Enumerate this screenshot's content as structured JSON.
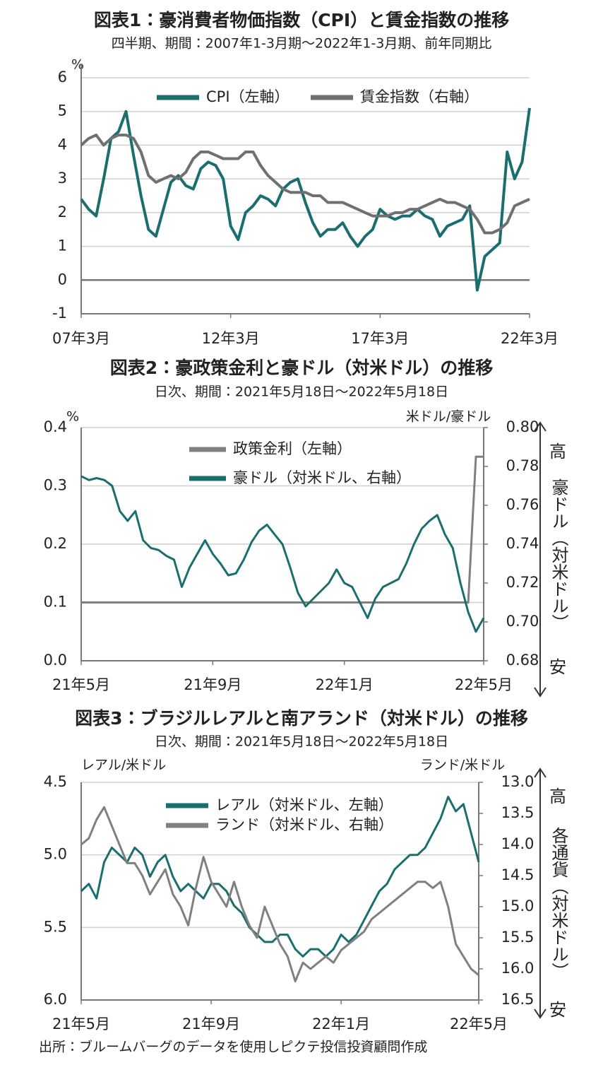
{
  "chart_data": [
    {
      "type": "line",
      "title": "図表1：豪消費者物価指数（CPI）と賃金指数の推移",
      "subtitle": "四半期、期間：2007年1-3月期～2022年1-3月期、前年同期比",
      "ylabel": "%",
      "categories": [
        "07年3月",
        null,
        null,
        null,
        null,
        null,
        null,
        null,
        null,
        null,
        null,
        null,
        null,
        null,
        null,
        null,
        null,
        null,
        null,
        null,
        "12年3月",
        null,
        null,
        null,
        null,
        null,
        null,
        null,
        null,
        null,
        null,
        null,
        null,
        null,
        null,
        null,
        null,
        null,
        null,
        null,
        "17年3月",
        null,
        null,
        null,
        null,
        null,
        null,
        null,
        null,
        null,
        null,
        null,
        null,
        null,
        null,
        null,
        null,
        null,
        null,
        null,
        "22年3月"
      ],
      "series": [
        {
          "name": "CPI（左軸）",
          "color": "#1b6e6e",
          "values": [
            2.4,
            2.1,
            1.9,
            3.0,
            4.2,
            4.4,
            5.0,
            3.7,
            2.5,
            1.5,
            1.3,
            2.1,
            2.9,
            3.1,
            2.8,
            2.7,
            3.3,
            3.5,
            3.4,
            3.0,
            1.6,
            1.2,
            2.0,
            2.2,
            2.5,
            2.4,
            2.2,
            2.7,
            2.9,
            3.0,
            2.3,
            1.7,
            1.3,
            1.5,
            1.5,
            1.7,
            1.3,
            1.0,
            1.3,
            1.5,
            2.1,
            1.9,
            1.8,
            1.9,
            1.9,
            2.1,
            1.9,
            1.8,
            1.3,
            1.6,
            1.7,
            1.8,
            2.2,
            -0.3,
            0.7,
            0.9,
            1.1,
            3.8,
            3.0,
            3.5,
            5.1
          ]
        },
        {
          "name": "賃金指数（右軸）",
          "color": "#707070",
          "values": [
            4.0,
            4.2,
            4.3,
            4.0,
            4.2,
            4.3,
            4.3,
            4.2,
            3.8,
            3.1,
            2.9,
            3.0,
            3.1,
            3.0,
            3.2,
            3.6,
            3.8,
            3.8,
            3.7,
            3.6,
            3.6,
            3.6,
            3.8,
            3.8,
            3.4,
            3.1,
            2.9,
            2.7,
            2.6,
            2.6,
            2.6,
            2.5,
            2.5,
            2.3,
            2.3,
            2.3,
            2.2,
            2.1,
            2.0,
            1.9,
            1.9,
            1.9,
            2.0,
            2.0,
            2.1,
            2.1,
            2.2,
            2.3,
            2.4,
            2.3,
            2.3,
            2.2,
            2.1,
            1.8,
            1.4,
            1.4,
            1.5,
            1.7,
            2.2,
            2.3,
            2.4
          ]
        }
      ],
      "ylim": [
        -1,
        6
      ],
      "yticks": [
        6,
        5,
        4,
        3,
        2,
        1,
        0,
        -1
      ],
      "grid": true
    },
    {
      "type": "line",
      "title": "図表2：豪政策金利と豪ドル（対米ドル）の推移",
      "subtitle": "日次、期間：2021年5月18日～2022年5月18日",
      "ylabel": "%",
      "y2label": "米ドル/豪ドル",
      "annotations": [
        "高",
        "豪ドル（対米ドル）",
        "安"
      ],
      "categories": [
        "21年5月",
        null,
        null,
        null,
        null,
        null,
        null,
        null,
        null,
        null,
        null,
        null,
        null,
        null,
        null,
        null,
        null,
        "21年9月",
        null,
        null,
        null,
        null,
        null,
        null,
        null,
        null,
        null,
        null,
        null,
        null,
        null,
        null,
        null,
        null,
        "22年1月",
        null,
        null,
        null,
        null,
        null,
        null,
        null,
        null,
        null,
        null,
        null,
        null,
        null,
        null,
        null,
        null,
        null,
        "22年5月"
      ],
      "series": [
        {
          "name": "政策金利（左軸）",
          "color": "#808080",
          "values": [
            0.1,
            0.1,
            0.1,
            0.1,
            0.1,
            0.1,
            0.1,
            0.1,
            0.1,
            0.1,
            0.1,
            0.1,
            0.1,
            0.1,
            0.1,
            0.1,
            0.1,
            0.1,
            0.1,
            0.1,
            0.1,
            0.1,
            0.1,
            0.1,
            0.1,
            0.1,
            0.1,
            0.1,
            0.1,
            0.1,
            0.1,
            0.1,
            0.1,
            0.1,
            0.1,
            0.1,
            0.1,
            0.1,
            0.1,
            0.1,
            0.1,
            0.1,
            0.1,
            0.1,
            0.1,
            0.1,
            0.1,
            0.1,
            0.1,
            0.1,
            0.1,
            0.35,
            0.35
          ]
        },
        {
          "name": "豪ドル（対米ドル、右軸）",
          "color": "#1b6e6e",
          "axis": "y2",
          "values": [
            0.775,
            0.773,
            0.774,
            0.773,
            0.77,
            0.757,
            0.752,
            0.757,
            0.742,
            0.738,
            0.737,
            0.734,
            0.732,
            0.718,
            0.728,
            0.735,
            0.742,
            0.735,
            0.73,
            0.724,
            0.725,
            0.732,
            0.741,
            0.747,
            0.75,
            0.745,
            0.74,
            0.728,
            0.715,
            0.708,
            0.712,
            0.716,
            0.72,
            0.727,
            0.72,
            0.718,
            0.71,
            0.702,
            0.712,
            0.718,
            0.72,
            0.722,
            0.73,
            0.74,
            0.748,
            0.752,
            0.755,
            0.745,
            0.738,
            0.72,
            0.705,
            0.695,
            0.702
          ]
        }
      ],
      "ylim": [
        0,
        0.4
      ],
      "yticks": [
        0.4,
        0.3,
        0.2,
        0.1,
        {
          "value": 0,
          "label": "0.0"
        }
      ],
      "y2lim": [
        0.68,
        0.8
      ],
      "y2ticks": [
        {
          "value": 0.8,
          "label": "0.80"
        },
        0.78,
        0.76,
        0.74,
        0.72,
        {
          "value": 0.7,
          "label": "0.70"
        },
        0.68
      ],
      "grid": true
    },
    {
      "type": "line",
      "title": "図表3：ブラジルレアルと南アランド（対米ドル）の推移",
      "subtitle": "日次、期間：2021年5月18日～2022年5月18日",
      "ylabel": "レアル/米ドル",
      "y2label": "ランド/米ドル",
      "annotations": [
        "高",
        "各通貨（対米ドル）",
        "安"
      ],
      "categories": [
        "21年5月",
        null,
        null,
        null,
        null,
        null,
        null,
        null,
        null,
        null,
        null,
        null,
        null,
        null,
        null,
        null,
        null,
        "21年9月",
        null,
        null,
        null,
        null,
        null,
        null,
        null,
        null,
        null,
        null,
        null,
        null,
        null,
        null,
        null,
        null,
        "22年1月",
        null,
        null,
        null,
        null,
        null,
        null,
        null,
        null,
        null,
        null,
        null,
        null,
        null,
        null,
        null,
        null,
        null,
        "22年5月"
      ],
      "series": [
        {
          "name": "レアル（対米ドル、左軸）",
          "color": "#1b6e6e",
          "values": [
            5.25,
            5.2,
            5.3,
            5.05,
            4.95,
            5.0,
            5.05,
            4.95,
            5.0,
            5.15,
            5.05,
            5.0,
            5.15,
            5.25,
            5.2,
            5.25,
            5.3,
            5.2,
            5.2,
            5.25,
            5.35,
            5.4,
            5.5,
            5.55,
            5.6,
            5.6,
            5.55,
            5.55,
            5.65,
            5.7,
            5.65,
            5.65,
            5.7,
            5.65,
            5.55,
            5.6,
            5.55,
            5.45,
            5.35,
            5.25,
            5.2,
            5.1,
            5.05,
            5.0,
            5.0,
            4.95,
            4.85,
            4.75,
            4.6,
            4.7,
            4.65,
            4.85,
            5.05
          ]
        },
        {
          "name": "ランド（対米ドル、右軸）",
          "color": "#808080",
          "axis": "y2",
          "values": [
            14.0,
            13.9,
            13.6,
            13.4,
            13.7,
            14.0,
            14.3,
            14.3,
            14.5,
            14.8,
            14.6,
            14.4,
            14.8,
            15.0,
            15.3,
            14.7,
            14.2,
            14.6,
            14.8,
            15.0,
            14.6,
            15.0,
            15.3,
            15.5,
            15.0,
            15.3,
            15.6,
            15.8,
            16.2,
            15.9,
            16.0,
            15.9,
            15.8,
            15.9,
            15.7,
            15.6,
            15.5,
            15.4,
            15.2,
            15.1,
            15.0,
            14.9,
            14.8,
            14.7,
            14.6,
            14.6,
            14.7,
            14.6,
            15.0,
            15.6,
            15.8,
            16.0,
            16.1
          ]
        }
      ],
      "ylim": [
        6,
        4.5
      ],
      "yticks": [
        4.5,
        {
          "value": 5,
          "label": "5.0"
        },
        5.5,
        {
          "value": 6,
          "label": "6.0"
        }
      ],
      "y2lim": [
        16.5,
        13
      ],
      "y2ticks": [
        {
          "value": 13,
          "label": "13.0"
        },
        13.5,
        {
          "value": 14,
          "label": "14.0"
        },
        14.5,
        {
          "value": 15,
          "label": "15.0"
        },
        15.5,
        {
          "value": 16,
          "label": "16.0"
        },
        16.5
      ],
      "grid": true
    }
  ],
  "source": "出所：ブルームバーグのデータを使用しピクテ投信投資顧問作成"
}
